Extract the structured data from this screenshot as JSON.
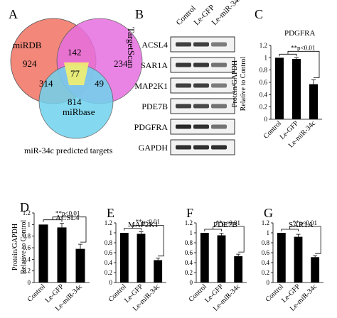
{
  "panels": {
    "A": "A",
    "B": "B",
    "C": "C",
    "D": "D",
    "E": "E",
    "F": "F",
    "G": "G"
  },
  "venn": {
    "circles": [
      {
        "name": "miRDB",
        "color": "#f2877a"
      },
      {
        "name": "TargetScan",
        "color": "#e76fe0"
      },
      {
        "name": "miRbase",
        "color": "#6fd3ee"
      }
    ],
    "regions": {
      "mirdb_only": "924",
      "targetscan_only": "234",
      "mirbase_only": "814",
      "mirdb_targetscan": "142",
      "mirdb_mirbase": "314",
      "targetscan_mirbase": "49",
      "all_three": "77"
    },
    "caption": "miR-34c predicted targets"
  },
  "blot": {
    "lanes": [
      "Control",
      "Le-GFP",
      "Le-miR-34c"
    ],
    "rows": [
      {
        "label": "ACSL4",
        "intensities": [
          0.8,
          0.8,
          0.45
        ]
      },
      {
        "label": "SAR1A",
        "intensities": [
          0.85,
          0.85,
          0.5
        ]
      },
      {
        "label": "MAP2K1",
        "intensities": [
          0.8,
          0.8,
          0.45
        ]
      },
      {
        "label": "PDE7B",
        "intensities": [
          0.8,
          0.75,
          0.5
        ]
      },
      {
        "label": "PDGFRA",
        "intensities": [
          0.95,
          0.9,
          0.5
        ]
      },
      {
        "label": "GAPDH",
        "intensities": [
          0.9,
          0.9,
          0.9
        ]
      }
    ]
  },
  "ylabel_lines": [
    "Protein/GAPDH",
    "Relative to Control"
  ],
  "significance": "**p<0.01",
  "chart_data": [
    {
      "panel": "C",
      "type": "bar",
      "title": "PDGFRA",
      "categories": [
        "Control",
        "Le-GFP",
        "Le-miR-34c"
      ],
      "values": [
        1.0,
        0.98,
        0.57
      ],
      "errors": [
        0.0,
        0.02,
        0.07
      ],
      "ylim": [
        0,
        1.2
      ],
      "yticks": [
        "0",
        "0.2",
        "0.4",
        "0.6",
        "0.8",
        "1",
        "1.2"
      ]
    },
    {
      "panel": "D",
      "type": "bar",
      "title": "ACSL4",
      "categories": [
        "Control",
        "Le-GFP",
        "Le-miR-34c"
      ],
      "values": [
        1.0,
        0.95,
        0.58
      ],
      "errors": [
        0.0,
        0.07,
        0.08
      ],
      "ylim": [
        0,
        1.2
      ],
      "yticks": [
        "0",
        "0.2",
        "0.4",
        "0.6",
        "0.8",
        "1",
        "1.2"
      ]
    },
    {
      "panel": "E",
      "type": "bar",
      "title": "MAP2K1",
      "categories": [
        "Control",
        "Le-GFP",
        "Le-miR-34c"
      ],
      "values": [
        1.0,
        0.98,
        0.45
      ],
      "errors": [
        0.0,
        0.04,
        0.04
      ],
      "ylim": [
        0,
        1.2
      ],
      "yticks": [
        "0",
        "0.2",
        "0.4",
        "0.6",
        "0.8",
        "1",
        "1.2"
      ]
    },
    {
      "panel": "F",
      "type": "bar",
      "title": "PDE7B",
      "categories": [
        "Control",
        "Le-GFP",
        "Le-miR-34c"
      ],
      "values": [
        1.0,
        0.95,
        0.53
      ],
      "errors": [
        0.0,
        0.04,
        0.04
      ],
      "ylim": [
        0,
        1.2
      ],
      "yticks": [
        "0",
        "0.2",
        "0.4",
        "0.6",
        "0.8",
        "1",
        "1.2"
      ]
    },
    {
      "panel": "G",
      "type": "bar",
      "title": "SAR1A",
      "categories": [
        "Control",
        "Le-GFP",
        "Le-miR-34c"
      ],
      "values": [
        1.0,
        0.92,
        0.51
      ],
      "errors": [
        0.0,
        0.05,
        0.03
      ],
      "ylim": [
        0,
        1.2
      ],
      "yticks": [
        "0",
        "0.2",
        "0.4",
        "0.6",
        "0.8",
        "1",
        "1.2"
      ]
    }
  ]
}
